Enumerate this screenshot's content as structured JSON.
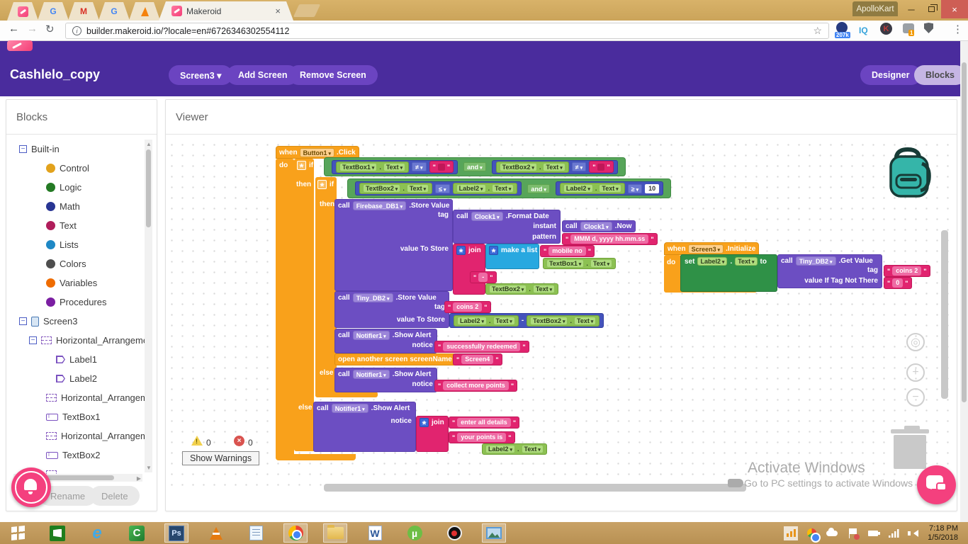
{
  "browser": {
    "active_tab": "Makeroid",
    "tab_close": "×",
    "url": "builder.makeroid.io/?locale=en#6726346302554112",
    "profile_name": "ApolloKart",
    "pinned_tabs": [
      {
        "id": "makeroid-favicon",
        "glyph": ""
      },
      {
        "id": "google-favicon",
        "glyph": "G"
      },
      {
        "id": "gmail-favicon",
        "glyph": "M"
      },
      {
        "id": "google-favicon",
        "glyph": "G"
      },
      {
        "id": "firebase-favicon",
        "glyph": ""
      }
    ],
    "extensions": {
      "adblock_badge": "207k",
      "iq_label": "IQ",
      "k_label": "K",
      "pocket_badge": "1"
    }
  },
  "header": {
    "project_title": "Cashlelo_copy",
    "screen_selector": "Screen3 ▾",
    "add_screen": "Add Screen",
    "remove_screen": "Remove Screen",
    "designer": "Designer",
    "blocks": "Blocks"
  },
  "sidebar": {
    "title": "Blocks",
    "rename": "Rename",
    "delete": "Delete",
    "tree": [
      {
        "id": "built-in",
        "label": "Built-in",
        "expander": true,
        "icon": "none",
        "indent": 18
      },
      {
        "id": "control",
        "label": "Control",
        "icon": "dot",
        "color": "#E2A21C",
        "indent": 56
      },
      {
        "id": "logic",
        "label": "Logic",
        "icon": "dot",
        "color": "#247A24",
        "indent": 56
      },
      {
        "id": "math",
        "label": "Math",
        "icon": "dot",
        "color": "#283593",
        "indent": 56
      },
      {
        "id": "text",
        "label": "Text",
        "icon": "dot",
        "color": "#B01E5B",
        "indent": 56
      },
      {
        "id": "lists",
        "label": "Lists",
        "icon": "dot",
        "color": "#1E88C5",
        "indent": 56
      },
      {
        "id": "colors",
        "label": "Colors",
        "icon": "dot",
        "color": "#4E4E4E",
        "indent": 56
      },
      {
        "id": "variables",
        "label": "Variables",
        "icon": "dot",
        "color": "#EF6C00",
        "indent": 56
      },
      {
        "id": "procedures",
        "label": "Procedures",
        "icon": "dot",
        "color": "#7B1FA2",
        "indent": 56
      },
      {
        "id": "screen3",
        "label": "Screen3",
        "expander": true,
        "icon": "screen",
        "indent": 18
      },
      {
        "id": "ha1",
        "label": "Horizontal_Arrangeme",
        "expander": true,
        "icon": "ha",
        "indent": 32
      },
      {
        "id": "label1",
        "label": "Label1",
        "icon": "label",
        "indent": 70
      },
      {
        "id": "label2",
        "label": "Label2",
        "icon": "label",
        "indent": 70
      },
      {
        "id": "ha2",
        "label": "Horizontal_Arrangeme",
        "icon": "ha",
        "indent": 56
      },
      {
        "id": "textbox1",
        "label": "TextBox1",
        "icon": "textbox",
        "indent": 56
      },
      {
        "id": "ha3",
        "label": "Horizontal_Arrangeme",
        "icon": "ha",
        "indent": 56
      },
      {
        "id": "textbox2",
        "label": "TextBox2",
        "icon": "textbox",
        "indent": 56
      },
      {
        "id": "ha4",
        "label": "",
        "icon": "ha",
        "indent": 56
      }
    ]
  },
  "viewer": {
    "title": "Viewer",
    "warning_count": "0",
    "error_count": "0",
    "error_glyph": "×",
    "show_warnings": "Show Warnings"
  },
  "kw": {
    "when": "when",
    "do": "do",
    "if": "if",
    "then": "then",
    "else": "else",
    "call": "call",
    "set": "set",
    "to": "to",
    "and": "and",
    "tag": "tag",
    "notice": "notice",
    "instant": "instant",
    "pattern": "pattern",
    "value_to_store": "value To Store",
    "value_if_tag_not_there": "value If Tag Not There",
    "join": "join",
    "make_a_list": "make a list",
    "open_screen": "open another screen",
    "screen_name": "screenName",
    "dot": "."
  },
  "refs": {
    "button1": "Button1",
    "textbox1": "TextBox1",
    "textbox2": "TextBox2",
    "label2": "Label2",
    "text": "Text",
    "firebase_db1": "Firebase_DB1",
    "clock1": "Clock1",
    "tiny_db2": "Tiny_DB2",
    "notifier1": "Notifier1",
    "screen3": "Screen3"
  },
  "events": {
    "click": ".Click",
    "initialize": ".Initialize",
    "store_value": ".Store Value",
    "format_date": ".Format Date",
    "now": ".Now",
    "show_alert": ".Show Alert",
    "get_value": ".Get Value"
  },
  "ops": {
    "neq": "≠",
    "leq": "≤",
    "geq": "≥",
    "minus": "-"
  },
  "literals": {
    "ten": "10",
    "date_pattern": "MMM d, yyyy hh.mm.ss",
    "mobile_no": "mobile no",
    "dash": "-",
    "coins_2": "coins 2",
    "success": "successfully redeemed",
    "screen4": "Screen4",
    "collect": "collect more points",
    "enter_details": "enter all details",
    "your_points": "your points is",
    "zero": "0"
  },
  "watermark": {
    "line1": "Activate Windows",
    "line2": "Go to PC settings to activate Windows"
  },
  "taskbar": {
    "time": "7:18 PM",
    "date": "1/5/2018",
    "apps": [
      {
        "id": "start"
      },
      {
        "id": "store"
      },
      {
        "id": "ie"
      },
      {
        "id": "camtasia"
      },
      {
        "id": "ps",
        "active": true
      },
      {
        "id": "vlc"
      },
      {
        "id": "notepad"
      },
      {
        "id": "chrome",
        "active": true
      },
      {
        "id": "explorer",
        "active": true
      },
      {
        "id": "word"
      },
      {
        "id": "utorrent"
      },
      {
        "id": "recorder"
      },
      {
        "id": "photos",
        "active": true
      }
    ],
    "tray": [
      {
        "id": "chart",
        "active": true
      },
      {
        "id": "chrome-mini"
      },
      {
        "id": "cloud"
      },
      {
        "id": "flag"
      },
      {
        "id": "battery"
      },
      {
        "id": "signal"
      },
      {
        "id": "speaker"
      }
    ]
  },
  "colors": {
    "header_purple": "#4A2C9D",
    "pill_purple": "#6B44C1",
    "selected_pill": "#C6B6E4",
    "block_orange": "#F9A11B",
    "block_purple": "#6C4EC2",
    "block_green": "#2F9147",
    "block_and_green": "#57A55A",
    "block_blue": "#4453BB",
    "block_getter_green": "#8CC152",
    "block_pink": "#E1246F",
    "block_cyan": "#28A8E0",
    "taskbar_gold": "#BE9759",
    "fab_pink": "#F4407E",
    "close_red": "#CE5E55"
  }
}
